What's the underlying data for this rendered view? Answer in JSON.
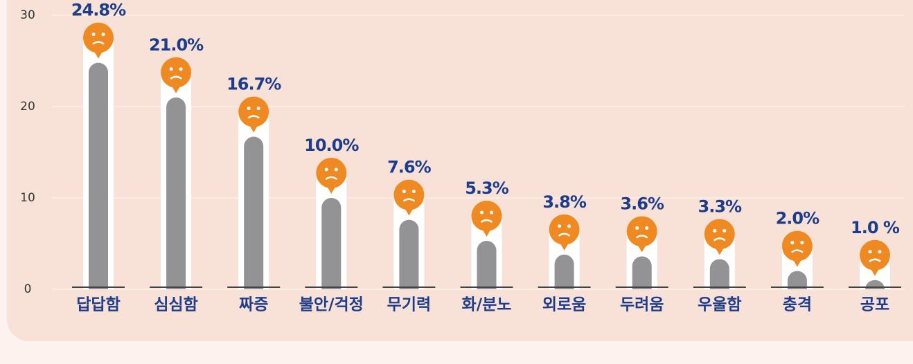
{
  "chart_data": {
    "type": "bar",
    "categories": [
      "답답함",
      "심심함",
      "짜증",
      "불안/걱정",
      "무기력",
      "화/분노",
      "외로움",
      "두려움",
      "우울함",
      "충격",
      "공포"
    ],
    "values": [
      24.8,
      21.0,
      16.7,
      10.0,
      7.6,
      5.3,
      3.8,
      3.6,
      3.3,
      2.0,
      1.0
    ],
    "value_labels": [
      "24.8%",
      "21.0%",
      "16.7%",
      "10.0%",
      "7.6%",
      "5.3%",
      "3.8%",
      "3.6%",
      "3.3%",
      "2.0%",
      "1.0 %"
    ],
    "color": "#939396",
    "ylim": [
      0,
      30
    ],
    "yticks": [
      0,
      10,
      20,
      30
    ],
    "grid": true
  }
}
